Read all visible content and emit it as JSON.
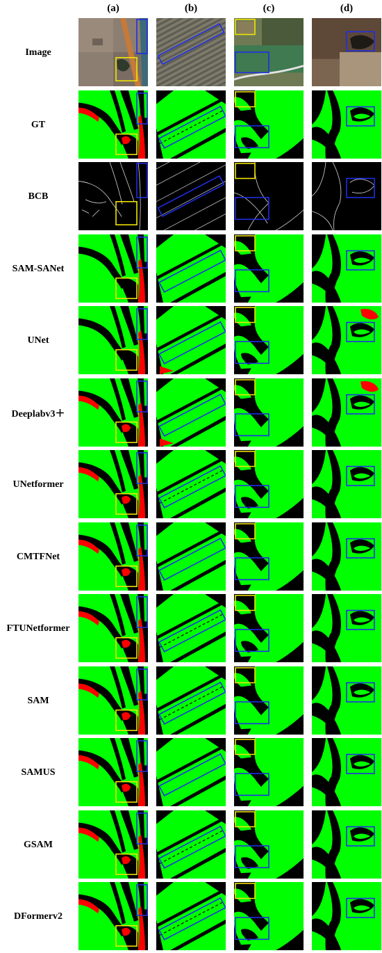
{
  "columns": [
    "(a)",
    "(b)",
    "(c)",
    "(d)"
  ],
  "rows": [
    "Image",
    "GT",
    "BCB",
    "SAM-SANet",
    "UNet",
    "Deeplabv3＋",
    "UNetformer",
    "CMTFNet",
    "FTUNetformer",
    "SAM",
    "SAMUS",
    "GSAM",
    "DFormerv2"
  ],
  "colors": {
    "farmland": "#00ff00",
    "background": "#000000",
    "water": "#ff0000",
    "box_blue": "#1f2ee6",
    "box_yellow": "#f2e600",
    "edge": "#d9d9d9"
  }
}
